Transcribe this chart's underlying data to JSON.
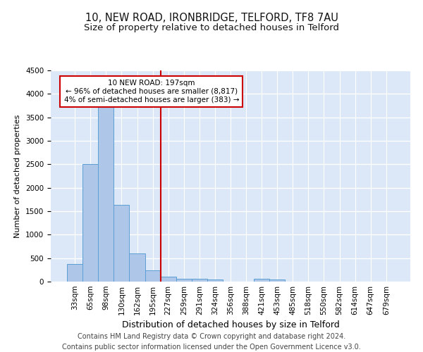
{
  "title1": "10, NEW ROAD, IRONBRIDGE, TELFORD, TF8 7AU",
  "title2": "Size of property relative to detached houses in Telford",
  "xlabel": "Distribution of detached houses by size in Telford",
  "ylabel": "Number of detached properties",
  "footnote": "Contains HM Land Registry data © Crown copyright and database right 2024.\nContains public sector information licensed under the Open Government Licence v3.0.",
  "bar_labels": [
    "33sqm",
    "65sqm",
    "98sqm",
    "130sqm",
    "162sqm",
    "195sqm",
    "227sqm",
    "259sqm",
    "291sqm",
    "324sqm",
    "356sqm",
    "388sqm",
    "421sqm",
    "453sqm",
    "485sqm",
    "518sqm",
    "550sqm",
    "582sqm",
    "614sqm",
    "647sqm",
    "679sqm"
  ],
  "bar_values": [
    380,
    2500,
    3750,
    1640,
    600,
    240,
    110,
    65,
    55,
    50,
    0,
    0,
    65,
    50,
    0,
    0,
    0,
    0,
    0,
    0,
    0
  ],
  "bar_color": "#aec6e8",
  "bar_edge_color": "#5a9fd4",
  "vline_x": 5.5,
  "vline_color": "#cc0000",
  "annotation_text": "10 NEW ROAD: 197sqm\n← 96% of detached houses are smaller (8,817)\n4% of semi-detached houses are larger (383) →",
  "annotation_box_color": "#ffffff",
  "annotation_box_edgecolor": "#cc0000",
  "ylim": [
    0,
    4500
  ],
  "background_color": "#dce8f7",
  "grid_color": "#ffffff",
  "title1_fontsize": 10.5,
  "title2_fontsize": 9.5,
  "ylabel_fontsize": 8,
  "xlabel_fontsize": 9,
  "footnote_fontsize": 7,
  "tick_fontsize": 7.5,
  "annot_fontsize": 7.5
}
